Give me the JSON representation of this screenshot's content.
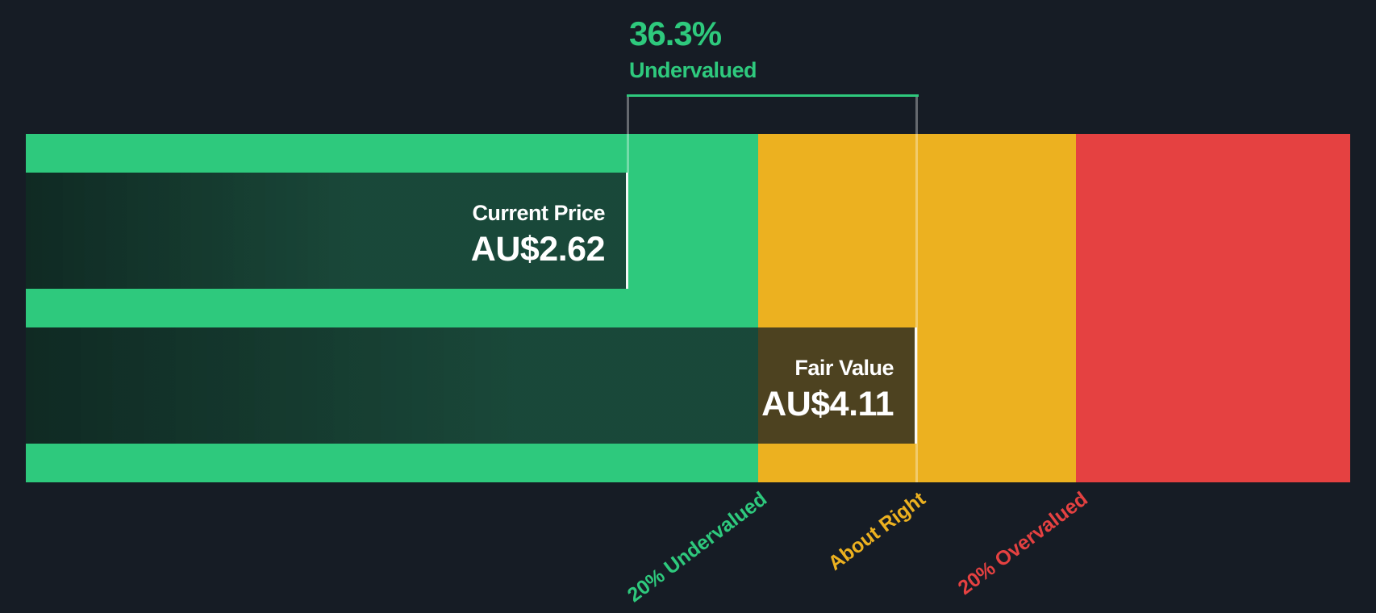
{
  "chart_data": {
    "type": "gauge",
    "subtype": "share-price-vs-fair-value",
    "discount_pct": "36.3%",
    "discount_label": "Undervalued",
    "current_price": {
      "label": "Current Price",
      "display": "AU$2.62",
      "value": 2.62,
      "currency": "AU$"
    },
    "fair_value": {
      "label": "Fair Value",
      "display": "AU$4.11",
      "value": 4.11,
      "currency": "AU$"
    },
    "zones": [
      {
        "label": "20% Undervalued",
        "color": "#2ec97d",
        "upper_bound_ratio_of_fair_value": 0.8
      },
      {
        "label": "About Right",
        "color": "#ecb120",
        "upper_bound_ratio_of_fair_value": 1.2
      },
      {
        "label": "20% Overvalued",
        "color": "#e54141",
        "upper_bound_ratio_of_fair_value": null
      }
    ],
    "colors": {
      "background": "#161c25",
      "annotation_text": "#2ec97d",
      "box_text": "#ffffff",
      "bracket_line": "#2ec97d",
      "marker_line": "rgba(255,255,255,0.34)"
    },
    "legend_position": "below-rotated",
    "grid": false
  }
}
